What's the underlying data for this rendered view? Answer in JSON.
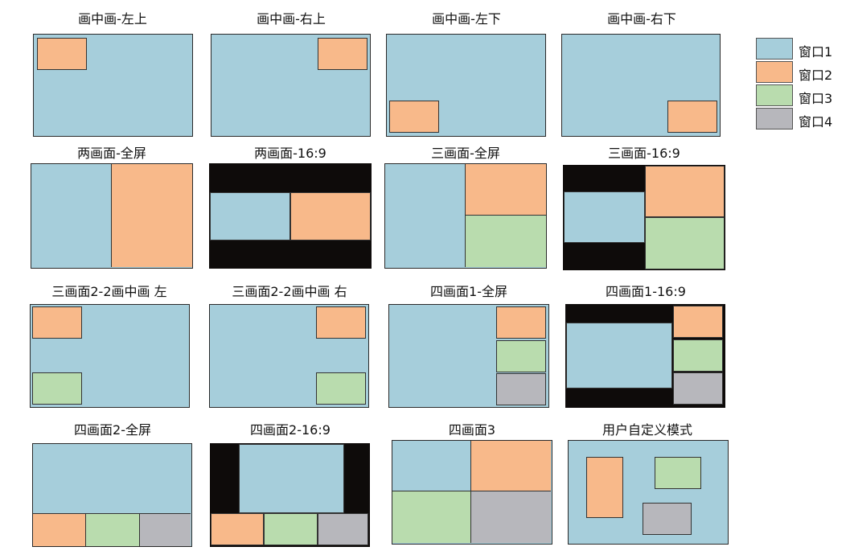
{
  "colors": {
    "window1": "#a6cedb",
    "window2": "#f8b98a",
    "window3": "#b9dcae",
    "window4": "#b7b7bc",
    "letterbox": "#0e0b0a"
  },
  "layouts": [
    {
      "title": "画中画-左上"
    },
    {
      "title": "画中画-右上"
    },
    {
      "title": "画中画-左下"
    },
    {
      "title": "画中画-右下"
    },
    {
      "title": "两画面-全屏"
    },
    {
      "title": "两画面-16:9"
    },
    {
      "title": "三画面-全屏"
    },
    {
      "title": "三画面-16:9"
    },
    {
      "title": "三画面2-2画中画 左"
    },
    {
      "title": "三画面2-2画中画 右"
    },
    {
      "title": "四画面1-全屏"
    },
    {
      "title": "四画面1-16:9"
    },
    {
      "title": "四画面2-全屏"
    },
    {
      "title": "四画面2-16:9"
    },
    {
      "title": "四画面3"
    },
    {
      "title": "用户自定义模式"
    }
  ],
  "legend": [
    {
      "label": "窗口1",
      "color": "#a6cedb"
    },
    {
      "label": "窗口2",
      "color": "#f8b98a"
    },
    {
      "label": "窗口3",
      "color": "#b9dcae"
    },
    {
      "label": "窗口4",
      "color": "#b7b7bc"
    }
  ]
}
